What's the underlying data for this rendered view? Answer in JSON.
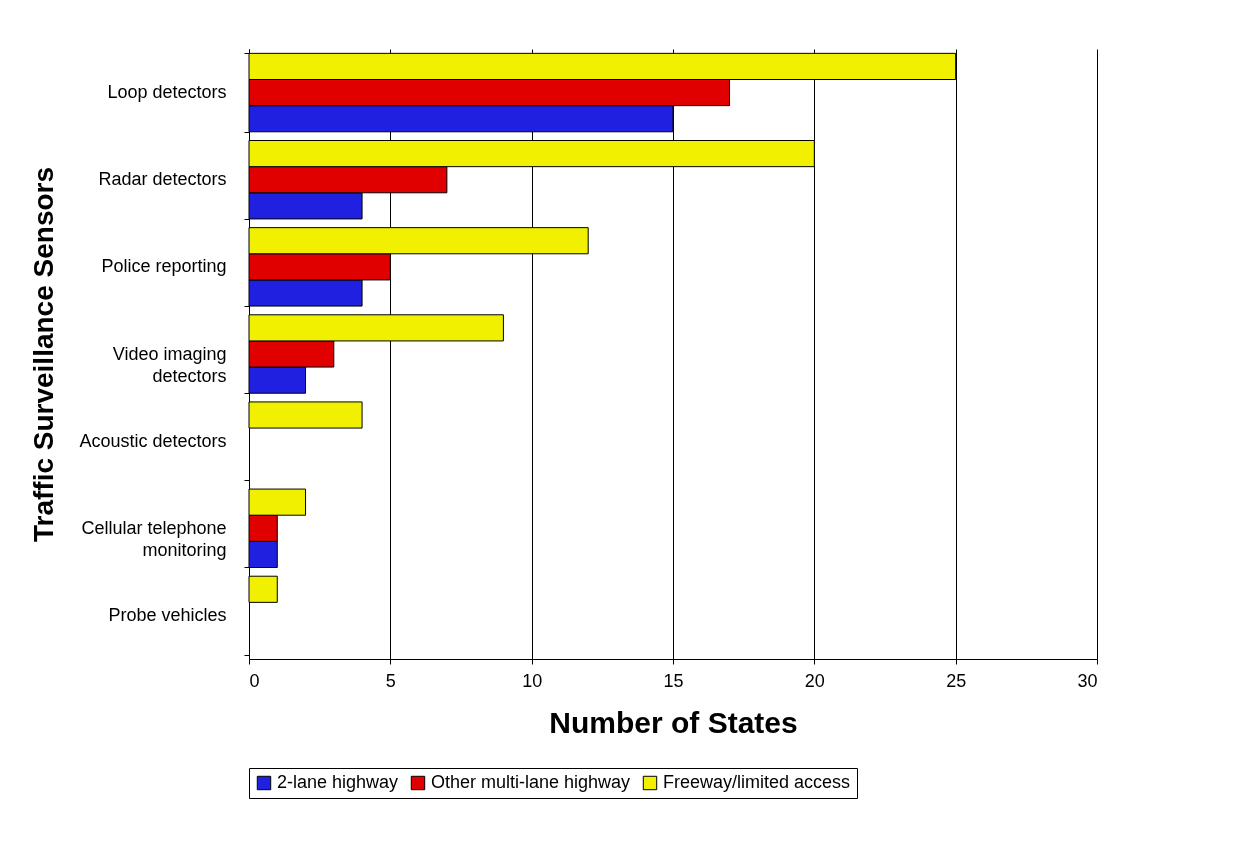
{
  "chart_data": {
    "type": "bar",
    "orientation": "horizontal",
    "xlabel": "Number of States",
    "ylabel": "Traffic Surveillance Sensors",
    "categories": [
      "Loop detectors",
      "Radar detectors",
      "Police reporting",
      "Video imaging detectors",
      "Acoustic detectors",
      "Cellular telephone monitoring",
      "Probe vehicles"
    ],
    "series": [
      {
        "name": "2-lane highway",
        "color": "#2020e0",
        "values": [
          15,
          4,
          4,
          2,
          null,
          1,
          null
        ]
      },
      {
        "name": "Other multi-lane highway",
        "color": "#e00000",
        "values": [
          17,
          7,
          5,
          3,
          null,
          1,
          null
        ]
      },
      {
        "name": "Freeway/limited access",
        "color": "#f0f000",
        "values": [
          25,
          20,
          12,
          9,
          4,
          2,
          1
        ]
      }
    ],
    "xlim": [
      0,
      30
    ],
    "xticks": [
      0,
      5,
      10,
      15,
      20,
      25,
      30
    ],
    "grid": "x",
    "legend": "bottom"
  }
}
